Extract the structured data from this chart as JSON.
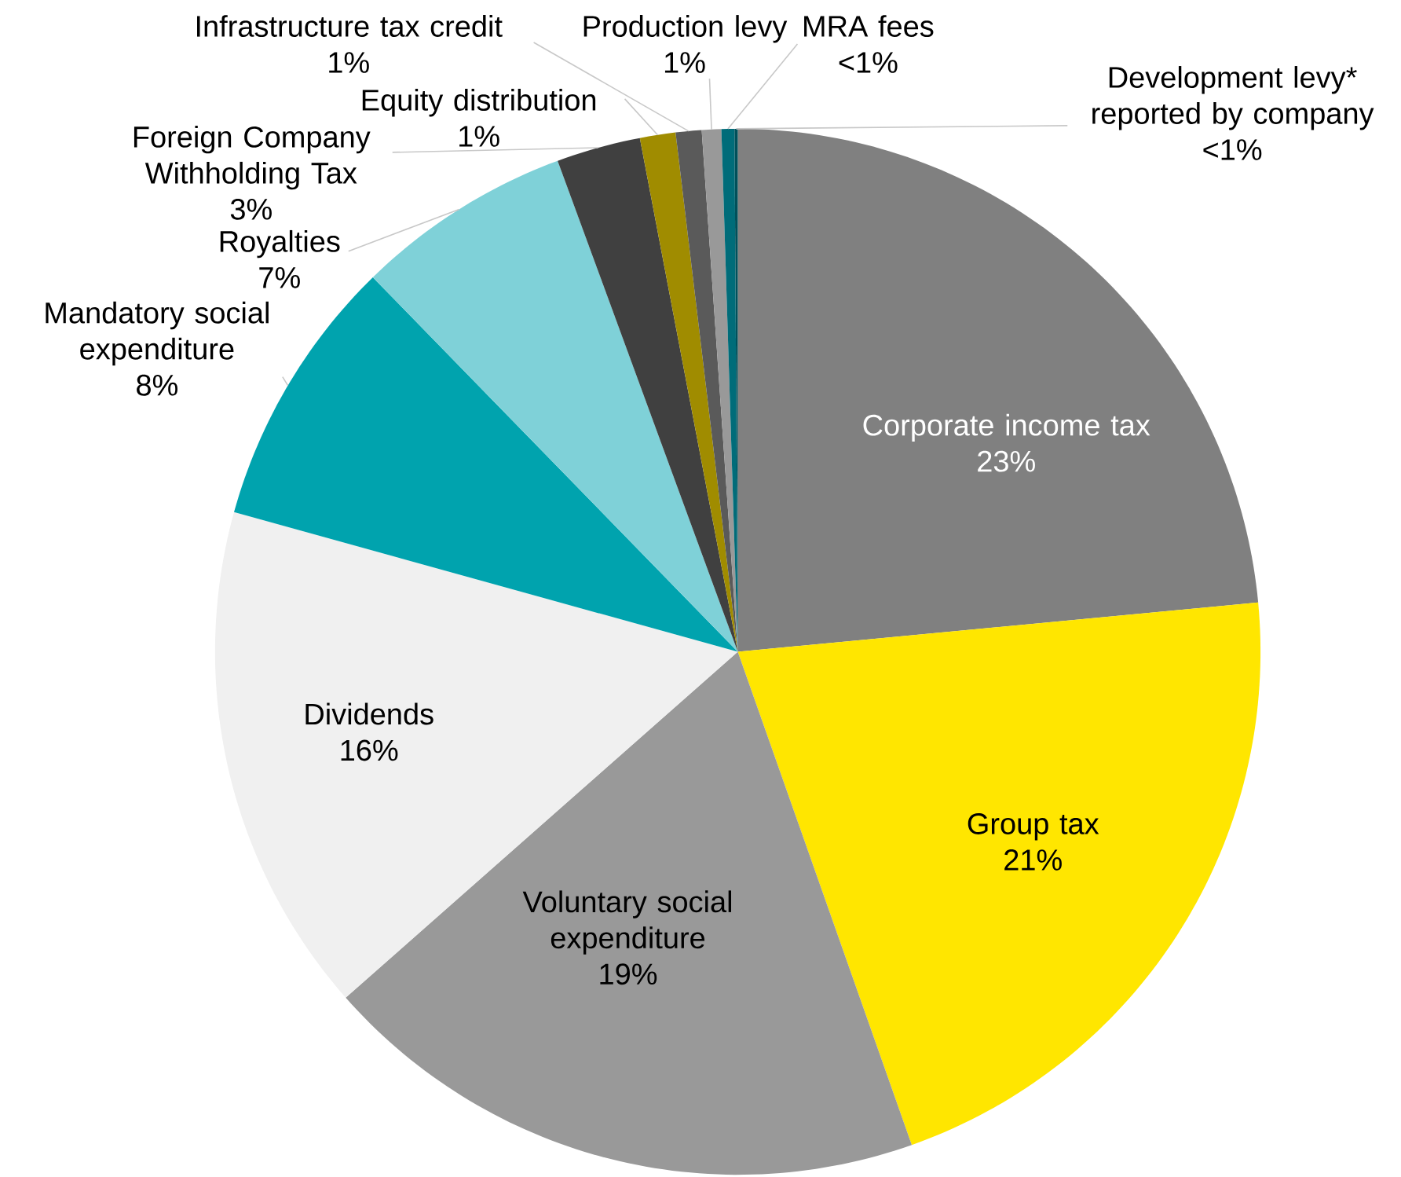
{
  "chart_data": {
    "type": "pie",
    "categories": [
      "Corporate income tax",
      "Group tax",
      "Voluntary social expenditure",
      "Dividends",
      "Mandatory social expenditure",
      "Royalties",
      "Foreign Company Withholding Tax",
      "Equity distribution",
      "Infrastructure tax credit",
      "Production levy",
      "MRA fees",
      "Development levy* reported by company"
    ],
    "values": [
      23.5,
      21.1,
      18.9,
      15.8,
      8.4,
      6.7,
      2.6,
      1.1,
      0.8,
      0.6,
      0.4,
      0.1
    ],
    "value_labels": [
      "23%",
      "21%",
      "19%",
      "16%",
      "8%",
      "7%",
      "3%",
      "1%",
      "1%",
      "1%",
      "<1%",
      "<1%"
    ],
    "colors": [
      "#808080",
      "#ffe600",
      "#999999",
      "#f0f0f0",
      "#00a3ae",
      "#7fd1d8",
      "#404040",
      "#a08c00",
      "#5a5a5a",
      "#999999",
      "#006c79",
      "#00505a"
    ]
  }
}
